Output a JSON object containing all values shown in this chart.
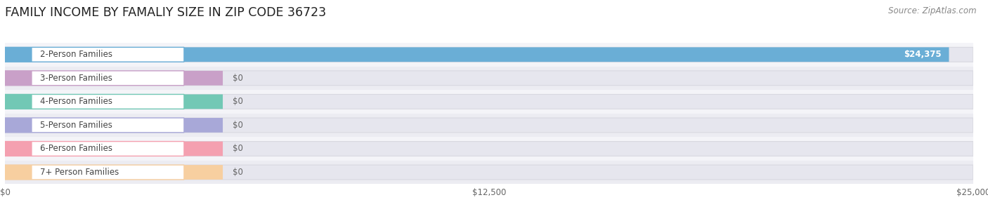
{
  "title": "FAMILY INCOME BY FAMALIY SIZE IN ZIP CODE 36723",
  "source": "Source: ZipAtlas.com",
  "categories": [
    "2-Person Families",
    "3-Person Families",
    "4-Person Families",
    "5-Person Families",
    "6-Person Families",
    "7+ Person Families"
  ],
  "values": [
    24375,
    0,
    0,
    0,
    0,
    0
  ],
  "bar_colors": [
    "#6aaed6",
    "#c9a0c8",
    "#72c8b5",
    "#a8a8d8",
    "#f4a0b0",
    "#f7cfa0"
  ],
  "max_value": 25000,
  "x_ticks": [
    0,
    12500,
    25000
  ],
  "x_tick_labels": [
    "$0",
    "$12,500",
    "$25,000"
  ],
  "background_color": "#ffffff",
  "title_fontsize": 12.5,
  "source_fontsize": 8.5,
  "label_fontsize": 8.5,
  "tick_fontsize": 8.5
}
